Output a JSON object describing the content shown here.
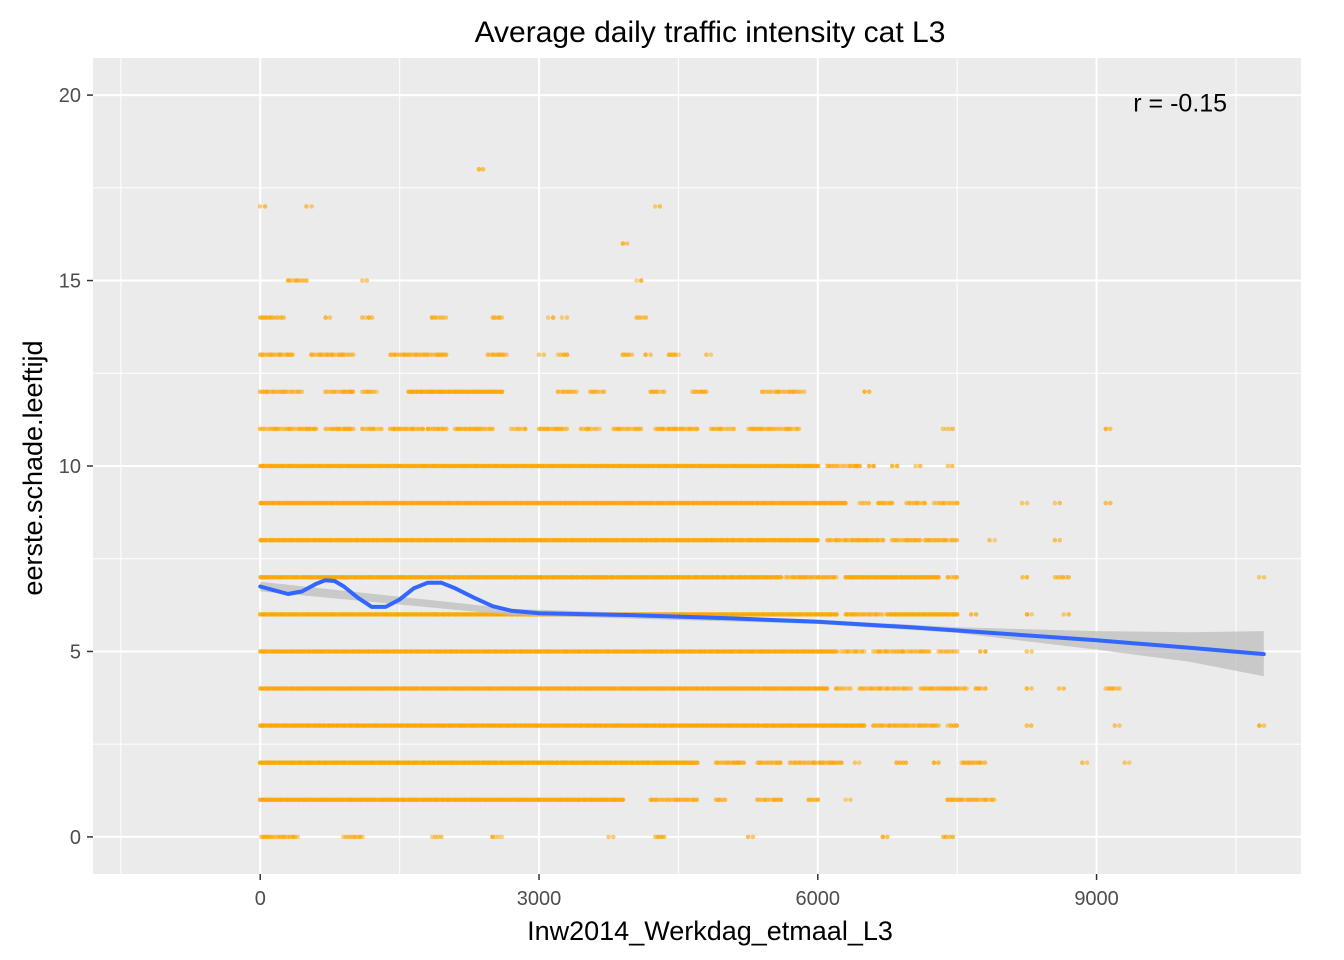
{
  "chart_data": {
    "type": "scatter",
    "title": "Average daily traffic intensity cat L3",
    "xlabel": "Inw2014_Werkdag_etmaal_L3",
    "ylabel": "eerste.schade.leeftijd",
    "xlim": [
      -1800,
      11200
    ],
    "ylim": [
      -1,
      21
    ],
    "x_ticks": [
      0,
      3000,
      6000,
      9000
    ],
    "y_ticks": [
      0,
      5,
      10,
      15,
      20
    ],
    "grid": true,
    "background": "#ebebeb",
    "point_color": "#ffa500",
    "smooth_color": "#3366ff",
    "ribbon_color": "#bdbdbd",
    "annotation": {
      "text": "r = -0.15",
      "x": 9900,
      "y": 19.8
    },
    "points_bands": [
      {
        "y": 0,
        "ranges": [
          [
            10,
            400
          ],
          [
            900,
            1100
          ],
          [
            1850,
            1950
          ],
          [
            2500,
            2600
          ],
          [
            3750,
            3800
          ],
          [
            4250,
            4350
          ],
          [
            5250,
            5300
          ],
          [
            6700,
            6750
          ],
          [
            7350,
            7450
          ]
        ]
      },
      {
        "y": 1,
        "ranges": [
          [
            0,
            3900
          ],
          [
            4200,
            4700
          ],
          [
            4900,
            5000
          ],
          [
            5350,
            5600
          ],
          [
            5900,
            6000
          ],
          [
            6300,
            6350
          ],
          [
            7400,
            7900
          ]
        ]
      },
      {
        "y": 2,
        "ranges": [
          [
            0,
            4700
          ],
          [
            4900,
            5200
          ],
          [
            5350,
            5600
          ],
          [
            5700,
            6250
          ],
          [
            6400,
            6450
          ],
          [
            6850,
            6950
          ],
          [
            7250,
            7300
          ],
          [
            7550,
            7800
          ],
          [
            8850,
            8900
          ],
          [
            9300,
            9350
          ]
        ]
      },
      {
        "y": 3,
        "ranges": [
          [
            0,
            6500
          ],
          [
            6600,
            7300
          ],
          [
            7400,
            7500
          ],
          [
            8250,
            8300
          ],
          [
            9200,
            9250
          ],
          [
            10750,
            10800
          ]
        ]
      },
      {
        "y": 4,
        "ranges": [
          [
            0,
            6100
          ],
          [
            6200,
            6350
          ],
          [
            6450,
            7000
          ],
          [
            7100,
            7600
          ],
          [
            7700,
            7800
          ],
          [
            8250,
            8300
          ],
          [
            8600,
            8650
          ],
          [
            9100,
            9250
          ]
        ]
      },
      {
        "y": 5,
        "ranges": [
          [
            0,
            6200
          ],
          [
            6250,
            6500
          ],
          [
            6600,
            7200
          ],
          [
            7300,
            7500
          ],
          [
            7750,
            7800
          ],
          [
            8250,
            8300
          ]
        ]
      },
      {
        "y": 6,
        "ranges": [
          [
            0,
            6200
          ],
          [
            6300,
            6700
          ],
          [
            6750,
            7500
          ],
          [
            7650,
            7700
          ],
          [
            8250,
            8300
          ],
          [
            8650,
            8700
          ]
        ]
      },
      {
        "y": 7,
        "ranges": [
          [
            0,
            5600
          ],
          [
            5650,
            6200
          ],
          [
            6300,
            7300
          ],
          [
            7400,
            7500
          ],
          [
            8200,
            8250
          ],
          [
            8550,
            8700
          ],
          [
            10750,
            10800
          ]
        ]
      },
      {
        "y": 8,
        "ranges": [
          [
            0,
            6000
          ],
          [
            6100,
            6700
          ],
          [
            6800,
            7100
          ],
          [
            7150,
            7500
          ],
          [
            7850,
            7900
          ],
          [
            8550,
            8600
          ]
        ]
      },
      {
        "y": 9,
        "ranges": [
          [
            0,
            6300
          ],
          [
            6450,
            6550
          ],
          [
            6650,
            6800
          ],
          [
            6950,
            7150
          ],
          [
            7250,
            7500
          ],
          [
            8200,
            8250
          ],
          [
            8550,
            8600
          ],
          [
            9100,
            9150
          ]
        ]
      },
      {
        "y": 10,
        "ranges": [
          [
            0,
            6000
          ],
          [
            6100,
            6450
          ],
          [
            6550,
            6600
          ],
          [
            6800,
            6850
          ],
          [
            7050,
            7100
          ],
          [
            7400,
            7450
          ]
        ]
      },
      {
        "y": 11,
        "ranges": [
          [
            0,
            600
          ],
          [
            700,
            1000
          ],
          [
            1100,
            1300
          ],
          [
            1400,
            1750
          ],
          [
            1800,
            2000
          ],
          [
            2100,
            2500
          ],
          [
            2700,
            2850
          ],
          [
            3000,
            3300
          ],
          [
            3450,
            3650
          ],
          [
            3800,
            4100
          ],
          [
            4250,
            4700
          ],
          [
            4850,
            5100
          ],
          [
            5250,
            5800
          ],
          [
            7350,
            7450
          ],
          [
            9100,
            9150
          ]
        ]
      },
      {
        "y": 12,
        "ranges": [
          [
            0,
            450
          ],
          [
            700,
            1000
          ],
          [
            1100,
            1250
          ],
          [
            1600,
            2600
          ],
          [
            3200,
            3400
          ],
          [
            3550,
            3700
          ],
          [
            4200,
            4350
          ],
          [
            4650,
            4800
          ],
          [
            5400,
            5850
          ],
          [
            6500,
            6550
          ]
        ]
      },
      {
        "y": 13,
        "ranges": [
          [
            0,
            350
          ],
          [
            550,
            1000
          ],
          [
            1400,
            2000
          ],
          [
            2450,
            2650
          ],
          [
            3000,
            3050
          ],
          [
            3200,
            3300
          ],
          [
            3900,
            4000
          ],
          [
            4150,
            4200
          ],
          [
            4400,
            4500
          ],
          [
            4800,
            4850
          ]
        ]
      },
      {
        "y": 14,
        "ranges": [
          [
            0,
            250
          ],
          [
            700,
            750
          ],
          [
            1100,
            1200
          ],
          [
            1850,
            2000
          ],
          [
            2500,
            2600
          ],
          [
            3100,
            3150
          ],
          [
            3250,
            3300
          ],
          [
            4050,
            4150
          ]
        ]
      },
      {
        "y": 15,
        "ranges": [
          [
            300,
            500
          ],
          [
            1100,
            1150
          ],
          [
            4050,
            4100
          ]
        ]
      },
      {
        "y": 16,
        "ranges": [
          [
            3900,
            3950
          ]
        ]
      },
      {
        "y": 17,
        "ranges": [
          [
            0,
            50
          ],
          [
            500,
            550
          ],
          [
            4250,
            4300
          ]
        ]
      },
      {
        "y": 18,
        "ranges": [
          [
            2350,
            2400
          ]
        ]
      }
    ],
    "smooth_line": [
      [
        0,
        6.75
      ],
      [
        150,
        6.65
      ],
      [
        300,
        6.55
      ],
      [
        450,
        6.62
      ],
      [
        600,
        6.82
      ],
      [
        700,
        6.92
      ],
      [
        800,
        6.9
      ],
      [
        900,
        6.75
      ],
      [
        1050,
        6.45
      ],
      [
        1200,
        6.2
      ],
      [
        1350,
        6.2
      ],
      [
        1500,
        6.4
      ],
      [
        1650,
        6.7
      ],
      [
        1800,
        6.85
      ],
      [
        1950,
        6.85
      ],
      [
        2100,
        6.7
      ],
      [
        2300,
        6.45
      ],
      [
        2500,
        6.22
      ],
      [
        2700,
        6.1
      ],
      [
        3000,
        6.03
      ],
      [
        4000,
        5.98
      ],
      [
        5000,
        5.9
      ],
      [
        6000,
        5.8
      ],
      [
        7000,
        5.65
      ],
      [
        8000,
        5.48
      ],
      [
        9000,
        5.3
      ],
      [
        10000,
        5.1
      ],
      [
        10800,
        4.93
      ]
    ],
    "ribbon": [
      [
        0,
        6.62,
        6.88
      ],
      [
        2700,
        5.98,
        6.15
      ],
      [
        6000,
        5.74,
        5.86
      ],
      [
        7500,
        5.5,
        5.65
      ],
      [
        8000,
        5.35,
        5.62
      ],
      [
        9000,
        5.05,
        5.55
      ],
      [
        10000,
        4.72,
        5.52
      ],
      [
        10800,
        4.33,
        5.55
      ]
    ]
  }
}
